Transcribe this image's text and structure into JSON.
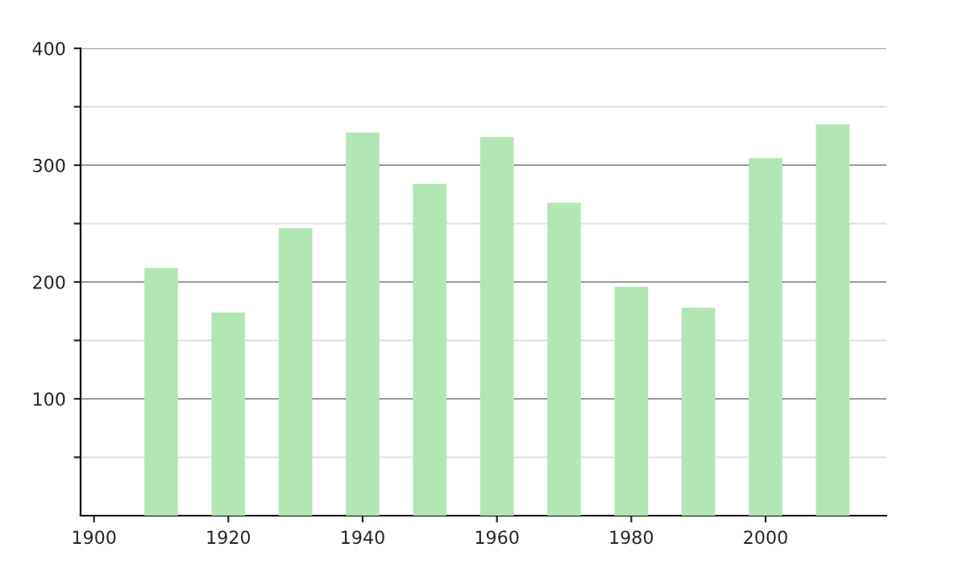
{
  "chart_data": {
    "type": "bar",
    "x": [
      1910,
      1920,
      1930,
      1940,
      1950,
      1960,
      1970,
      1980,
      1990,
      2000,
      2010
    ],
    "values": [
      212,
      174,
      246,
      328,
      284,
      324,
      268,
      196,
      178,
      306,
      335
    ],
    "color": "#b3e6b5",
    "xlim": [
      1898,
      2018
    ],
    "xticks": [
      1900,
      1920,
      1940,
      1960,
      1980,
      2000
    ],
    "ylim": [
      0,
      400
    ],
    "yticks": [
      {
        "value": 50,
        "label": null
      },
      100,
      {
        "value": 150,
        "label": null
      },
      200,
      {
        "value": 250,
        "label": null
      },
      300,
      {
        "value": 350,
        "label": null
      },
      400
    ],
    "grid": "y",
    "legend": false
  }
}
